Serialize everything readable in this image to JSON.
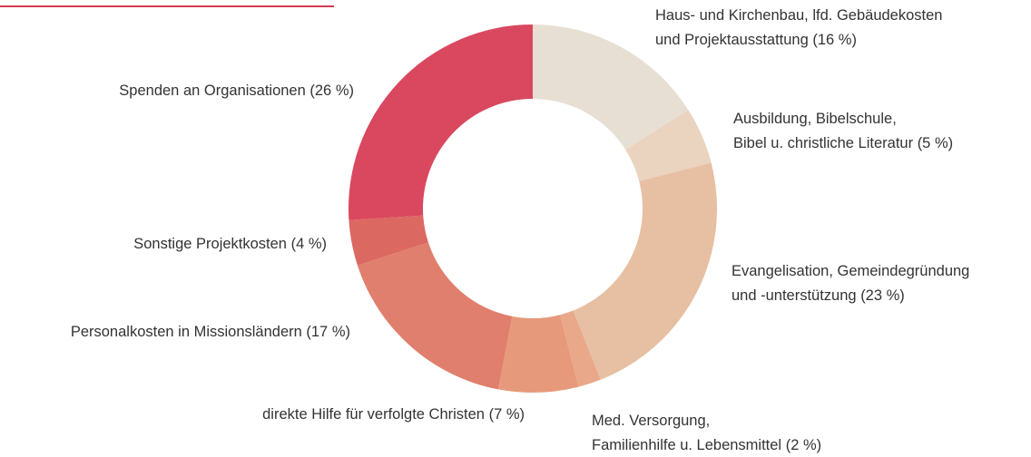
{
  "chart_data": {
    "type": "donut",
    "categories": [
      [
        "Haus- und Kirchenbau, lfd. Gebäudekosten",
        "und Projektausstattung"
      ],
      [
        "Ausbildung, Bibelschule,",
        "Bibel u. christliche Literatur"
      ],
      [
        "Evangelisation,  Gemeindegründung",
        "und -unterstützung"
      ],
      [
        "Med. Versorgung,",
        "Familienhilfe u. Lebensmittel"
      ],
      [
        "direkte Hilfe für verfolgte Christen"
      ],
      [
        "Personalkosten in Missionsländern"
      ],
      [
        "Sonstige Projektkosten"
      ],
      [
        "Spenden an Organisationen"
      ]
    ],
    "values": [
      16,
      5,
      23,
      2,
      7,
      17,
      4,
      26
    ],
    "value_labels": [
      "(16 %)",
      "(5 %)",
      "(23 %)",
      "(2 %)",
      "(7 %)",
      "(17 %)",
      "(4 %)",
      "(26 %)"
    ],
    "colors": [
      "#e8dfd4",
      "#ead3bf",
      "#e7bfa2",
      "#e9a889",
      "#e69a7b",
      "#e07f6d",
      "#dc6862",
      "#d9485f"
    ]
  }
}
